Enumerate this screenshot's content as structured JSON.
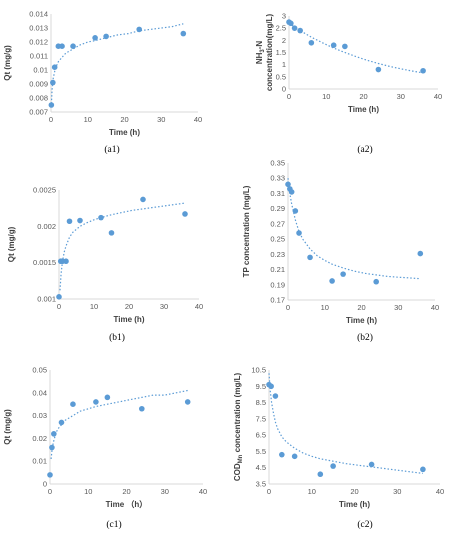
{
  "style": {
    "point_color": "#5B9BD5",
    "axis_color": "#D9D9D9",
    "fit_color": "#5B9BD5"
  },
  "chart_data": [
    {
      "id": "a1",
      "panel_label": "(a1)",
      "type": "scatter",
      "xlabel": "Time (h)",
      "ylabel": "Qt (mg/g)",
      "xlim": [
        0,
        40
      ],
      "ylim": [
        0.007,
        0.014
      ],
      "xticks": [
        "0",
        "10",
        "20",
        "30",
        "40"
      ],
      "yticks": [
        "0.007",
        "0.008",
        "0.009",
        "0.01",
        "0.011",
        "0.012",
        "0.013",
        "0.014"
      ],
      "points": [
        {
          "x": 0.1,
          "y": 0.0075
        },
        {
          "x": 0.5,
          "y": 0.0091
        },
        {
          "x": 1,
          "y": 0.0102
        },
        {
          "x": 2,
          "y": 0.0117
        },
        {
          "x": 3,
          "y": 0.0117
        },
        {
          "x": 6,
          "y": 0.0117
        },
        {
          "x": 12,
          "y": 0.0123
        },
        {
          "x": 15,
          "y": 0.0124
        },
        {
          "x": 24,
          "y": 0.0129
        },
        {
          "x": 36,
          "y": 0.0126
        }
      ],
      "fit": {
        "x": [
          0.1,
          0.3,
          0.6,
          1,
          1.5,
          2,
          3,
          4,
          6,
          8,
          10,
          12,
          15,
          18,
          21,
          24,
          27,
          30,
          33,
          36
        ],
        "y": [
          0.0076,
          0.0086,
          0.0094,
          0.0099,
          0.0103,
          0.0106,
          0.0109,
          0.0112,
          0.0115,
          0.0118,
          0.012,
          0.0121,
          0.0123,
          0.0125,
          0.0126,
          0.0128,
          0.0129,
          0.013,
          0.0131,
          0.0133
        ]
      }
    },
    {
      "id": "a2",
      "panel_label": "(a2)",
      "type": "scatter",
      "xlabel": "Time (h)",
      "ylabel": "NH3-N concentration(mg/L)",
      "ylabel_line1": "NH",
      "ylabel_sub": "3",
      "ylabel_line1_end": "-N",
      "ylabel_line2": "concentration(mg/L)",
      "xlim": [
        0,
        40
      ],
      "ylim": [
        0,
        3
      ],
      "xticks": [
        "0",
        "10",
        "20",
        "30",
        "40"
      ],
      "yticks": [
        "0",
        "0.5",
        "1",
        "1.5",
        "2",
        "2.5",
        "3"
      ],
      "points": [
        {
          "x": 0,
          "y": 2.75
        },
        {
          "x": 0.5,
          "y": 2.7
        },
        {
          "x": 1.5,
          "y": 2.5
        },
        {
          "x": 3,
          "y": 2.4
        },
        {
          "x": 6,
          "y": 1.9
        },
        {
          "x": 12,
          "y": 1.8
        },
        {
          "x": 15,
          "y": 1.75
        },
        {
          "x": 24,
          "y": 0.8
        },
        {
          "x": 36,
          "y": 0.75
        }
      ],
      "fit": {
        "x": [
          0,
          3,
          6,
          9,
          12,
          15,
          18,
          21,
          24,
          27,
          30,
          33,
          36
        ],
        "y": [
          2.7,
          2.4,
          2.13,
          1.9,
          1.68,
          1.5,
          1.33,
          1.18,
          1.05,
          0.93,
          0.83,
          0.74,
          0.66
        ]
      }
    },
    {
      "id": "b1",
      "panel_label": "(b1)",
      "type": "scatter",
      "xlabel": "Time (h)",
      "ylabel": "Qt (mg/g)",
      "xlim": [
        0,
        40
      ],
      "ylim": [
        0.001,
        0.0025
      ],
      "xticks": [
        "0",
        "10",
        "20",
        "30",
        "40"
      ],
      "yticks": [
        "0.001",
        "0.0015",
        "0.002",
        "0.0025"
      ],
      "points": [
        {
          "x": 0,
          "y": 0.00103
        },
        {
          "x": 0.5,
          "y": 0.00152
        },
        {
          "x": 1,
          "y": 0.00152
        },
        {
          "x": 2,
          "y": 0.00152
        },
        {
          "x": 3,
          "y": 0.00207
        },
        {
          "x": 6,
          "y": 0.00208
        },
        {
          "x": 12,
          "y": 0.00212
        },
        {
          "x": 15,
          "y": 0.00191
        },
        {
          "x": 24,
          "y": 0.00237
        },
        {
          "x": 36,
          "y": 0.00217
        }
      ],
      "fit": {
        "x": [
          0.3,
          0.6,
          1,
          1.5,
          2,
          3,
          4,
          6,
          8,
          10,
          12,
          15,
          18,
          21,
          24,
          27,
          30,
          33,
          36
        ],
        "y": [
          0.00112,
          0.00135,
          0.00152,
          0.00165,
          0.00173,
          0.00185,
          0.00192,
          0.002,
          0.00205,
          0.00209,
          0.00212,
          0.00216,
          0.00219,
          0.00222,
          0.00224,
          0.00226,
          0.00228,
          0.0023,
          0.00232
        ]
      }
    },
    {
      "id": "b2",
      "panel_label": "(b2)",
      "type": "scatter",
      "xlabel": "Time (h)",
      "ylabel": "TP concentration (mg/L)",
      "xlim": [
        0,
        40
      ],
      "ylim": [
        0.17,
        0.35
      ],
      "xticks": [
        "0",
        "10",
        "20",
        "30",
        "40"
      ],
      "yticks": [
        "0.17",
        "0.19",
        "0.21",
        "0.23",
        "0.25",
        "0.27",
        "0.29",
        "0.31",
        "0.33",
        "0.35"
      ],
      "points": [
        {
          "x": 0,
          "y": 0.322
        },
        {
          "x": 0.5,
          "y": 0.316
        },
        {
          "x": 1,
          "y": 0.312
        },
        {
          "x": 2,
          "y": 0.287
        },
        {
          "x": 3,
          "y": 0.258
        },
        {
          "x": 6,
          "y": 0.226
        },
        {
          "x": 12,
          "y": 0.195
        },
        {
          "x": 15,
          "y": 0.204
        },
        {
          "x": 24,
          "y": 0.194
        },
        {
          "x": 36,
          "y": 0.231
        }
      ],
      "fit": {
        "x": [
          0,
          0.5,
          1,
          2,
          3,
          4,
          6,
          8,
          10,
          12,
          15,
          18,
          21,
          24,
          27,
          30,
          33,
          36
        ],
        "y": [
          0.33,
          0.31,
          0.296,
          0.275,
          0.26,
          0.25,
          0.237,
          0.228,
          0.222,
          0.217,
          0.212,
          0.208,
          0.205,
          0.203,
          0.201,
          0.2,
          0.199,
          0.198
        ]
      }
    },
    {
      "id": "c1",
      "panel_label": "(c1)",
      "type": "scatter",
      "xlabel": "Time （h）",
      "ylabel": "Qt (mg/g)",
      "xlim": [
        0,
        40
      ],
      "ylim": [
        0,
        0.05
      ],
      "xticks": [
        "0",
        "10",
        "20",
        "30",
        "40"
      ],
      "yticks": [
        "0",
        "0.01",
        "0.02",
        "0.03",
        "0.04",
        "0.05"
      ],
      "points": [
        {
          "x": 0,
          "y": 0.004
        },
        {
          "x": 0.5,
          "y": 0.016
        },
        {
          "x": 1,
          "y": 0.022
        },
        {
          "x": 3,
          "y": 0.027
        },
        {
          "x": 6,
          "y": 0.035
        },
        {
          "x": 12,
          "y": 0.036
        },
        {
          "x": 15,
          "y": 0.038
        },
        {
          "x": 24,
          "y": 0.033
        },
        {
          "x": 36,
          "y": 0.036
        }
      ],
      "fit": {
        "x": [
          0.3,
          0.6,
          1,
          1.5,
          2,
          3,
          4,
          6,
          8,
          10,
          12,
          15,
          18,
          21,
          24,
          27,
          30,
          33,
          36
        ],
        "y": [
          0.011,
          0.016,
          0.019,
          0.022,
          0.024,
          0.026,
          0.028,
          0.03,
          0.032,
          0.033,
          0.034,
          0.035,
          0.036,
          0.037,
          0.038,
          0.039,
          0.039,
          0.04,
          0.041
        ]
      }
    },
    {
      "id": "c2",
      "panel_label": "(c2)",
      "type": "scatter",
      "xlabel": "Time (h)",
      "ylabel": "CODMn concentration (mg/L)",
      "ylabel_main": "COD",
      "ylabel_sub": "Mn",
      "ylabel_rest": " concentration (mg/L)",
      "xlim": [
        0,
        40
      ],
      "ylim": [
        3.5,
        10.5
      ],
      "xticks": [
        "0",
        "10",
        "20",
        "30",
        "40"
      ],
      "yticks": [
        "3.5",
        "4.5",
        "5.5",
        "6.5",
        "7.5",
        "8.5",
        "9.5",
        "10.5"
      ],
      "points": [
        {
          "x": 0,
          "y": 9.6
        },
        {
          "x": 0.5,
          "y": 9.5
        },
        {
          "x": 1.5,
          "y": 8.9
        },
        {
          "x": 3,
          "y": 5.3
        },
        {
          "x": 6,
          "y": 5.2
        },
        {
          "x": 12,
          "y": 4.1
        },
        {
          "x": 15,
          "y": 4.6
        },
        {
          "x": 24,
          "y": 4.7
        },
        {
          "x": 36,
          "y": 4.4
        }
      ],
      "fit": {
        "x": [
          0,
          0.3,
          0.6,
          1,
          1.5,
          2,
          3,
          4,
          6,
          8,
          10,
          12,
          15,
          18,
          21,
          24,
          27,
          30,
          33,
          36
        ],
        "y": [
          10.3,
          9.2,
          8.5,
          7.9,
          7.3,
          6.9,
          6.4,
          6.1,
          5.7,
          5.4,
          5.2,
          5.05,
          4.9,
          4.75,
          4.65,
          4.55,
          4.45,
          4.35,
          4.25,
          4.15
        ]
      }
    }
  ]
}
